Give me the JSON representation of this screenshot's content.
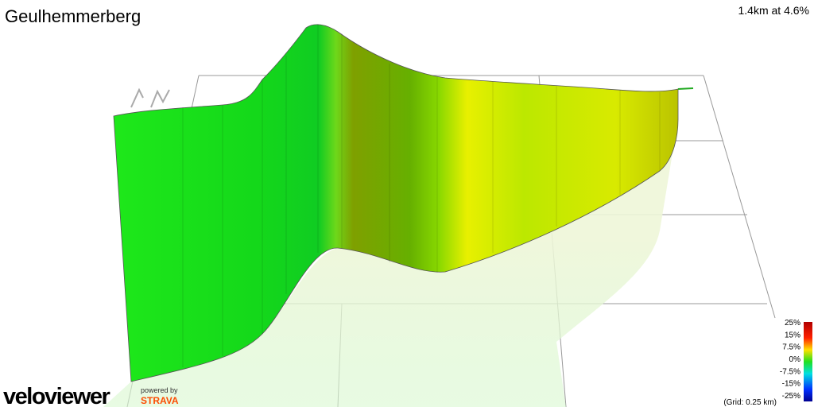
{
  "header": {
    "title": "Geulhemmerberg",
    "summary": "1.4km at 4.6%"
  },
  "legend": {
    "ticks": [
      "25%",
      "15%",
      "7.5%",
      "0%",
      "-7.5%",
      "-15%",
      "-25%"
    ],
    "grid_note": "(Grid: 0.25 km)"
  },
  "branding": {
    "logo": "veloviewer",
    "powered_by": "powered by",
    "partner": "STRAVA"
  }
}
